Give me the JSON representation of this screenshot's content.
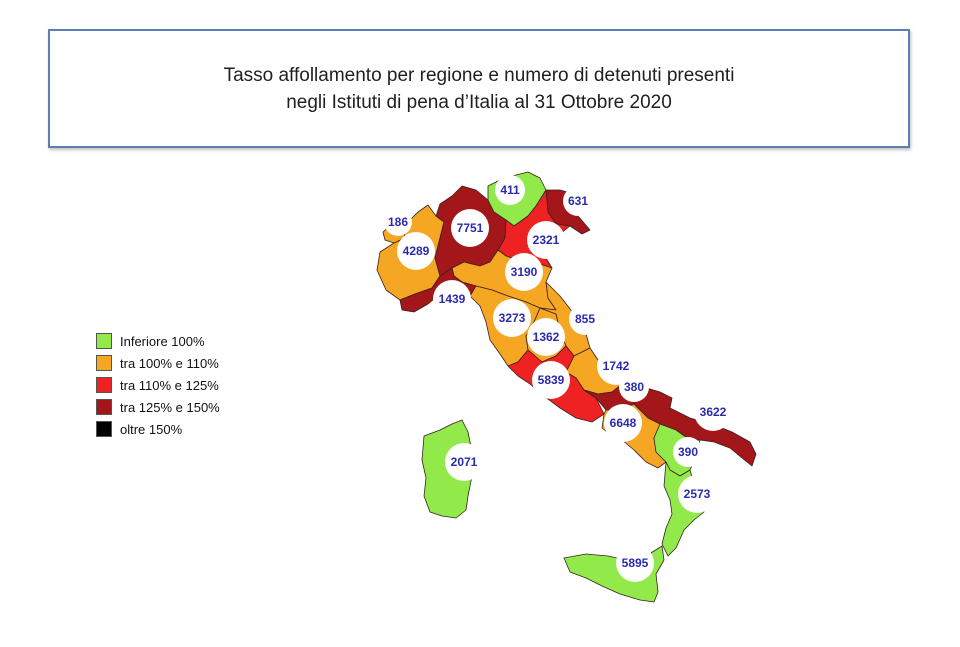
{
  "title": {
    "line1": "Tasso affollamento per regione e numero di detenuti presenti",
    "line2": "negli Istituti di pena d’Italia al 31 Ottobre 2020"
  },
  "legend": [
    {
      "label": "Inferiore 100%",
      "color": "#92ea4a"
    },
    {
      "label": "tra 100% e 110%",
      "color": "#f5a623"
    },
    {
      "label": "tra 110% e 125%",
      "color": "#ee2222"
    },
    {
      "label": "tra 125% e 150%",
      "color": "#a3161a"
    },
    {
      "label": "oltre 150%",
      "color": "#000000"
    }
  ],
  "regions": [
    {
      "name": "Valle d'Aosta",
      "count": "186",
      "color": "#f5a623"
    },
    {
      "name": "Piemonte",
      "count": "4289",
      "color": "#f5a623"
    },
    {
      "name": "Lombardia",
      "count": "7751",
      "color": "#a3161a"
    },
    {
      "name": "Trentino-Alto Adige",
      "count": "411",
      "color": "#92ea4a"
    },
    {
      "name": "Friuli-Venezia Giulia",
      "count": "631",
      "color": "#a3161a"
    },
    {
      "name": "Veneto",
      "count": "2321",
      "color": "#ee2222"
    },
    {
      "name": "Emilia-Romagna",
      "count": "3190",
      "color": "#f5a623"
    },
    {
      "name": "Liguria",
      "count": "1439",
      "color": "#a3161a"
    },
    {
      "name": "Toscana",
      "count": "3273",
      "color": "#f5a623"
    },
    {
      "name": "Umbria",
      "count": "1362",
      "color": "#f5a623"
    },
    {
      "name": "Marche",
      "count": "855",
      "color": "#f5a623"
    },
    {
      "name": "Abruzzo",
      "count": "1742",
      "color": "#f5a623"
    },
    {
      "name": "Lazio",
      "count": "5839",
      "color": "#ee2222"
    },
    {
      "name": "Molise",
      "count": "380",
      "color": "#a3161a"
    },
    {
      "name": "Puglia",
      "count": "3622",
      "color": "#a3161a"
    },
    {
      "name": "Campania",
      "count": "6648",
      "color": "#f5a623"
    },
    {
      "name": "Basilicata",
      "count": "390",
      "color": "#92ea4a"
    },
    {
      "name": "Calabria",
      "count": "2573",
      "color": "#92ea4a"
    },
    {
      "name": "Sicilia",
      "count": "5895",
      "color": "#92ea4a"
    },
    {
      "name": "Sardegna",
      "count": "2071",
      "color": "#92ea4a"
    }
  ]
}
